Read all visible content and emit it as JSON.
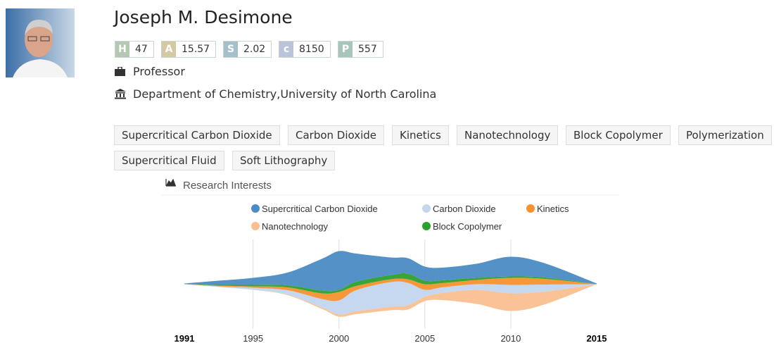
{
  "profile": {
    "name": "Joseph M. Desimone",
    "metrics": [
      {
        "key": "H",
        "value": 47
      },
      {
        "key": "A",
        "value": 15.57
      },
      {
        "key": "S",
        "value": 2.02
      },
      {
        "key": "c",
        "value": 8150
      },
      {
        "key": "P",
        "value": 557
      }
    ],
    "position": "Professor",
    "affiliation": "Department of Chemistry,University of North Carolina",
    "tags": [
      "Supercritical Carbon Dioxide",
      "Carbon Dioxide",
      "Kinetics",
      "Nanotechnology",
      "Block Copolymer",
      "Polymerization",
      "Supercritical Fluid",
      "Soft Lithography"
    ]
  },
  "chart_data": {
    "type": "stream",
    "title": "Research Interests",
    "x": [
      1991,
      1993,
      1995,
      1997,
      1999,
      2000,
      2001,
      2003,
      2004,
      2005,
      2006,
      2008,
      2010,
      2012,
      2015
    ],
    "xlim": [
      1991,
      2015
    ],
    "xticks": [
      1991,
      1995,
      2000,
      2005,
      2010,
      2015
    ],
    "series": [
      {
        "name": "Supercritical Carbon Dioxide",
        "color": "#4a8bc4",
        "values": [
          1,
          6,
          10,
          18,
          45,
          55,
          40,
          25,
          22,
          20,
          18,
          20,
          28,
          20,
          1
        ]
      },
      {
        "name": "Carbon Dioxide",
        "color": "#c3d5ef",
        "values": [
          0,
          1,
          3,
          6,
          12,
          20,
          30,
          35,
          32,
          10,
          8,
          8,
          12,
          10,
          0
        ]
      },
      {
        "name": "Kinetics",
        "color": "#f5922f",
        "values": [
          0,
          1,
          2,
          4,
          8,
          12,
          6,
          4,
          5,
          8,
          6,
          6,
          10,
          8,
          0
        ]
      },
      {
        "name": "Nanotechnology",
        "color": "#f9c08f",
        "values": [
          0,
          0,
          0,
          1,
          2,
          3,
          4,
          5,
          6,
          6,
          10,
          20,
          25,
          18,
          0
        ]
      },
      {
        "name": "Block Copolymer",
        "color": "#2ca02c",
        "values": [
          0,
          1,
          2,
          3,
          4,
          3,
          6,
          6,
          8,
          5,
          4,
          3,
          2,
          2,
          0
        ]
      }
    ],
    "grid": true
  }
}
